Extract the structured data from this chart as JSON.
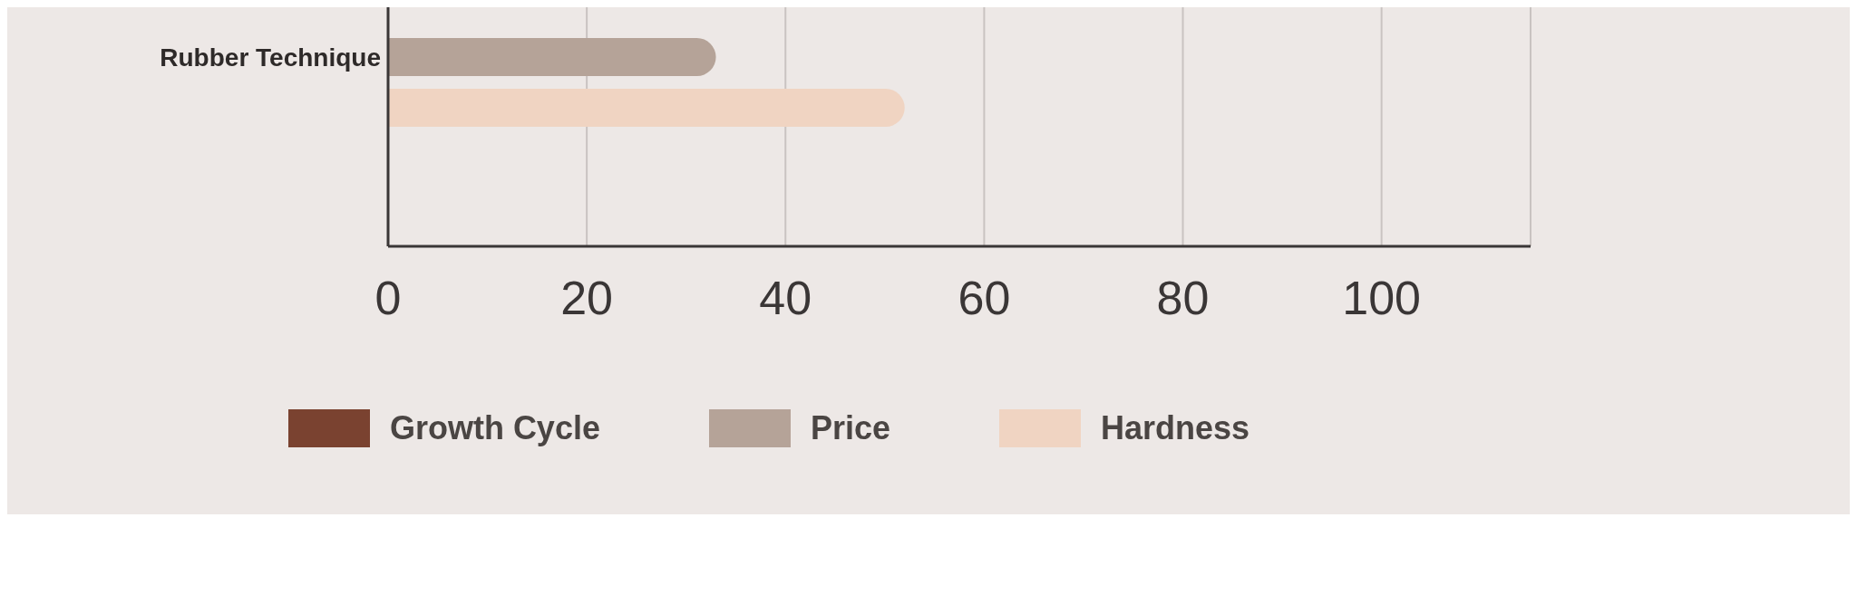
{
  "chart_data": {
    "type": "bar",
    "orientation": "horizontal",
    "categories": [
      "Rubber Technique"
    ],
    "series": [
      {
        "name": "Growth Cycle",
        "color": "#7a4230",
        "values": [
          null
        ]
      },
      {
        "name": "Price",
        "color": "#b5a398",
        "values": [
          33
        ]
      },
      {
        "name": "Hardness",
        "color": "#f0d4c2",
        "values": [
          52
        ]
      }
    ],
    "xlim": [
      0,
      115
    ],
    "xticks": [
      0,
      20,
      40,
      60,
      80,
      100
    ],
    "grid": "x",
    "legend": "bottom"
  }
}
